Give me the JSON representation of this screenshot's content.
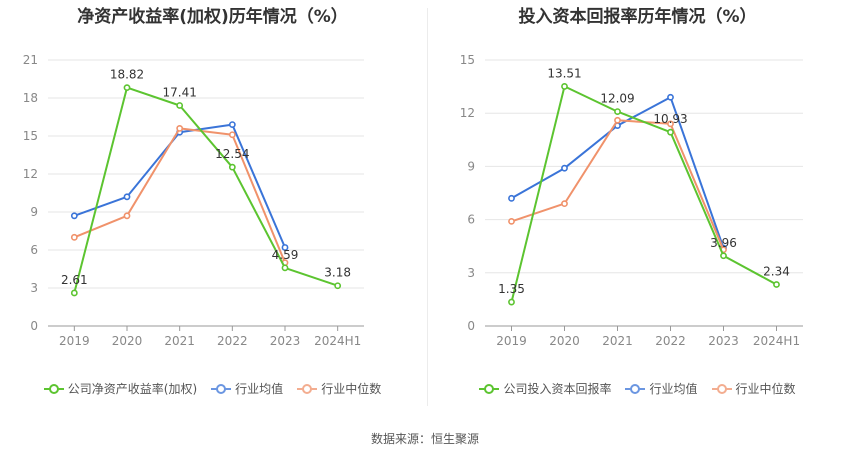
{
  "source_text": "数据来源：恒生聚源",
  "colors": {
    "company": "#5cc430",
    "average": "#3a74d8",
    "median": "#f0926b",
    "grid": "#e6e6e6",
    "axis": "#999999",
    "tick": "#888888",
    "label": "#333333"
  },
  "chart_data": [
    {
      "type": "line",
      "title": "净资产收益率(加权)历年情况（%）",
      "categories": [
        "2019",
        "2020",
        "2021",
        "2022",
        "2023",
        "2024H1"
      ],
      "yticks": [
        0,
        3,
        6,
        9,
        12,
        15,
        18,
        21
      ],
      "ylim": [
        0,
        21
      ],
      "grid": true,
      "legend_position": "bottom",
      "series": [
        {
          "name": "公司净资产收益率(加权)",
          "role": "company",
          "values": [
            2.61,
            18.82,
            17.41,
            12.54,
            4.59,
            3.18
          ],
          "labels": [
            "2.61",
            "18.82",
            "17.41",
            "12.54",
            "4.59",
            "3.18"
          ]
        },
        {
          "name": "行业均值",
          "role": "average",
          "values": [
            8.7,
            10.2,
            15.3,
            15.9,
            6.2,
            null
          ]
        },
        {
          "name": "行业中位数",
          "role": "median",
          "values": [
            7.0,
            8.7,
            15.6,
            15.1,
            5.0,
            null
          ]
        }
      ]
    },
    {
      "type": "line",
      "title": "投入资本回报率历年情况（%）",
      "categories": [
        "2019",
        "2020",
        "2021",
        "2022",
        "2023",
        "2024H1"
      ],
      "yticks": [
        0,
        3,
        6,
        9,
        12,
        15
      ],
      "ylim": [
        0,
        15
      ],
      "grid": true,
      "legend_position": "bottom",
      "series": [
        {
          "name": "公司投入资本回报率",
          "role": "company",
          "values": [
            1.35,
            13.51,
            12.09,
            10.93,
            3.96,
            2.34
          ],
          "labels": [
            "1.35",
            "13.51",
            "12.09",
            "10.93",
            "3.96",
            "2.34"
          ]
        },
        {
          "name": "行业均值",
          "role": "average",
          "values": [
            7.2,
            8.9,
            11.3,
            12.9,
            4.4,
            null
          ]
        },
        {
          "name": "行业中位数",
          "role": "median",
          "values": [
            5.9,
            6.9,
            11.6,
            11.4,
            4.3,
            null
          ]
        }
      ]
    }
  ]
}
